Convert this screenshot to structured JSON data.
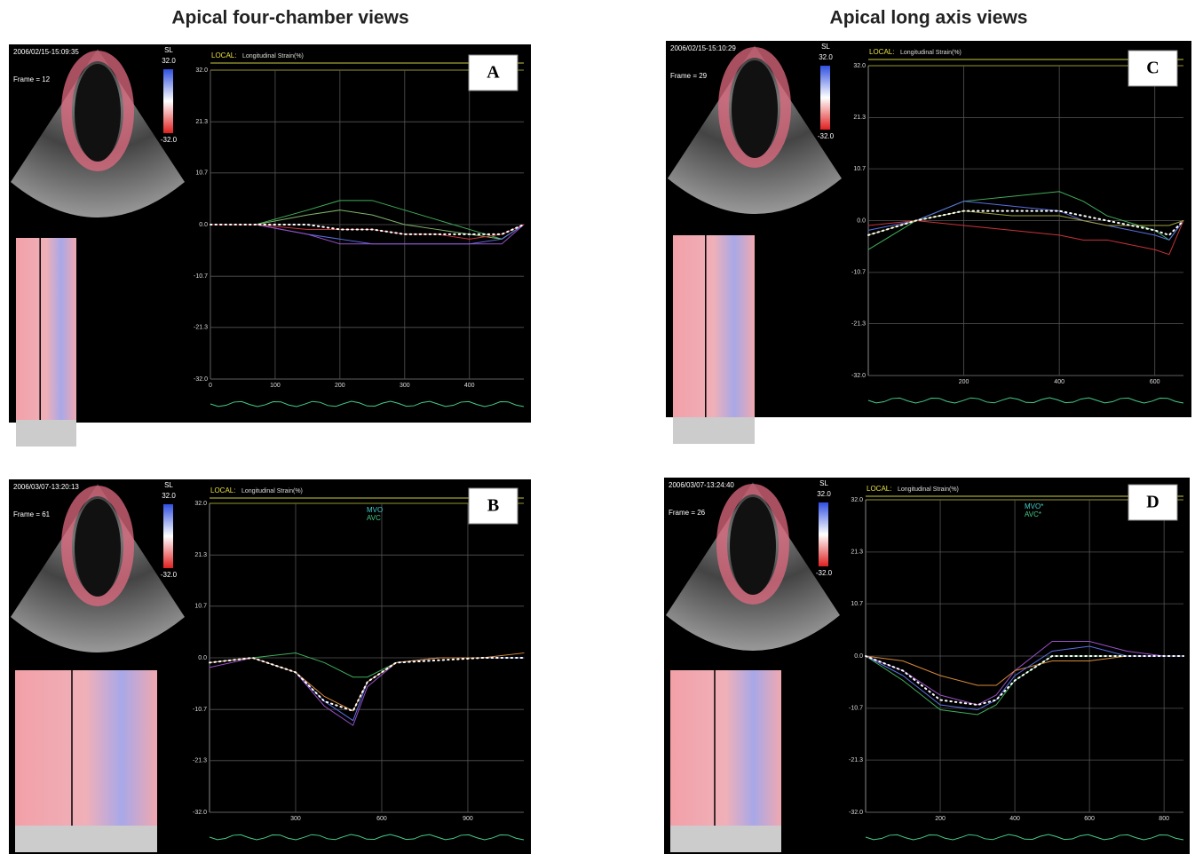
{
  "column_titles": [
    "Apical four-chamber views",
    "Apical long axis views"
  ],
  "chart_data": [
    {
      "type": "line",
      "letter": "A",
      "timestamp": "2006/02/15-15:09:35",
      "frame": "Frame = 12",
      "scale_label": "SL",
      "scale_max": "32.0",
      "scale_min": "-32.0",
      "header": "LOCAL:",
      "y_label": "Longitudinal Strain(%)",
      "grid": true,
      "xlim": [
        0,
        484
      ],
      "xticks": [
        0,
        100,
        200,
        300,
        400
      ],
      "ylim": [
        -32,
        32
      ],
      "yticks": [
        {
          "value": 32,
          "label": "32.0"
        },
        {
          "value": 21.3,
          "label": "21.3"
        },
        {
          "value": 10.7,
          "label": "10.7"
        },
        {
          "value": 0,
          "label": "0.0"
        },
        {
          "value": -10.7,
          "label": "-10.7"
        },
        {
          "value": -21.3,
          "label": "-21.3"
        },
        {
          "value": -32,
          "label": "-32.0"
        }
      ],
      "x": [
        0,
        70,
        150,
        200,
        250,
        300,
        350,
        400,
        450,
        484
      ],
      "series": [
        {
          "color": "#3fae5a",
          "values": [
            0,
            0,
            3,
            5,
            5,
            3,
            1,
            -1,
            -3,
            0
          ]
        },
        {
          "color": "#7fb36a",
          "values": [
            0,
            0,
            2,
            3,
            2,
            0,
            -1,
            -2,
            -3,
            0
          ]
        },
        {
          "color": "#5a6fe0",
          "values": [
            0,
            0,
            -2,
            -3,
            -4,
            -4,
            -4,
            -4,
            -3,
            0
          ]
        },
        {
          "color": "#9a4fc8",
          "values": [
            0,
            0,
            -2,
            -4,
            -4,
            -4,
            -4,
            -4,
            -4,
            0
          ]
        },
        {
          "color": "#c8333a",
          "values": [
            0,
            0,
            -1,
            -1,
            -1,
            -2,
            -2,
            -3,
            -2,
            0
          ]
        },
        {
          "color": "#ffffff",
          "dotted": true,
          "values": [
            0,
            0,
            0,
            -1,
            -1,
            -2,
            -2,
            -2,
            -2,
            0
          ]
        }
      ]
    },
    {
      "type": "line",
      "letter": "B",
      "timestamp": "2006/03/07-13:20:13",
      "frame": "Frame = 61",
      "scale_label": "SL",
      "scale_max": "32.0",
      "scale_min": "-32.0",
      "header": "LOCAL:",
      "y_label": "Longitudinal Strain(%)",
      "events": [
        "MVO",
        "AVC"
      ],
      "grid": true,
      "xlim": [
        0,
        1095
      ],
      "xticks": [
        300,
        600,
        900
      ],
      "ylim": [
        -32,
        32
      ],
      "yticks": [
        {
          "value": 32,
          "label": "32.0"
        },
        {
          "value": 21.3,
          "label": "21.3"
        },
        {
          "value": 10.7,
          "label": "10.7"
        },
        {
          "value": 0,
          "label": "0.0"
        },
        {
          "value": -10.7,
          "label": "-10.7"
        },
        {
          "value": -21.3,
          "label": "-21.3"
        },
        {
          "value": -32,
          "label": "-32.0"
        }
      ],
      "x": [
        0,
        150,
        300,
        400,
        500,
        550,
        650,
        800,
        950,
        1095
      ],
      "series": [
        {
          "color": "#3fae5a",
          "values": [
            -1,
            0,
            1,
            -1,
            -4,
            -4,
            -1,
            0,
            0,
            0
          ]
        },
        {
          "color": "#9a4fc8",
          "values": [
            -2,
            0,
            -3,
            -10,
            -14,
            -6,
            -1,
            0,
            0,
            0
          ]
        },
        {
          "color": "#5a6fe0",
          "values": [
            -1,
            0,
            -3,
            -9,
            -13,
            -5,
            -1,
            0,
            0,
            0
          ]
        },
        {
          "color": "#d88a3a",
          "values": [
            -1,
            0,
            -3,
            -8,
            -11,
            -5,
            -1,
            0,
            0,
            1
          ]
        },
        {
          "color": "#ffffff",
          "dotted": true,
          "values": [
            -1,
            0,
            -3,
            -9,
            -11,
            -5,
            -1,
            -0.5,
            0,
            0
          ]
        }
      ]
    },
    {
      "type": "line",
      "letter": "C",
      "timestamp": "2006/02/15-15:10:29",
      "frame": "Frame = 29",
      "scale_label": "SL",
      "scale_max": "32.0",
      "scale_min": "-32.0",
      "header": "LOCAL:",
      "y_label": "Longitudinal Strain(%)",
      "grid": true,
      "xlim": [
        0,
        660
      ],
      "xticks": [
        200,
        400,
        600
      ],
      "ylim": [
        -32,
        32
      ],
      "yticks": [
        {
          "value": 32,
          "label": "32.0"
        },
        {
          "value": 21.3,
          "label": "21.3"
        },
        {
          "value": 10.7,
          "label": "10.7"
        },
        {
          "value": 0,
          "label": "0.0"
        },
        {
          "value": -10.7,
          "label": "-10.7"
        },
        {
          "value": -21.3,
          "label": "-21.3"
        },
        {
          "value": -32,
          "label": "-32.0"
        }
      ],
      "x": [
        0,
        100,
        200,
        300,
        400,
        450,
        500,
        600,
        630,
        660
      ],
      "series": [
        {
          "color": "#3fae5a",
          "values": [
            -6,
            0,
            4,
            5,
            6,
            4,
            1,
            -2,
            -4,
            0
          ]
        },
        {
          "color": "#5a6fe0",
          "values": [
            -2,
            0,
            4,
            3,
            2,
            0,
            -1,
            -3,
            -4,
            0
          ]
        },
        {
          "color": "#c8333a",
          "values": [
            -1,
            0,
            -1,
            -2,
            -3,
            -4,
            -4,
            -6,
            -7,
            0
          ]
        },
        {
          "color": "#a0a040",
          "values": [
            -3,
            0,
            2,
            1,
            1,
            0,
            -1,
            -1,
            -1,
            0
          ]
        },
        {
          "color": "#ffffff",
          "dotted": true,
          "values": [
            -3,
            0,
            2,
            2,
            2,
            1,
            0,
            -2,
            -3,
            0
          ]
        }
      ]
    },
    {
      "type": "line",
      "letter": "D",
      "timestamp": "2006/03/07-13:24:40",
      "frame": "Frame = 26",
      "scale_label": "SL",
      "scale_max": "32.0",
      "scale_min": "-32.0",
      "header": "LOCAL:",
      "y_label": "Longitudinal Strain(%)",
      "events": [
        "MVO*",
        "AVC*"
      ],
      "grid": true,
      "xlim": [
        0,
        852
      ],
      "xticks": [
        200,
        400,
        600,
        800
      ],
      "ylim": [
        -32,
        32
      ],
      "yticks": [
        {
          "value": 32,
          "label": "32.0"
        },
        {
          "value": 21.3,
          "label": "21.3"
        },
        {
          "value": 10.7,
          "label": "10.7"
        },
        {
          "value": 0,
          "label": "0.0"
        },
        {
          "value": -10.7,
          "label": "-10.7"
        },
        {
          "value": -21.3,
          "label": "-21.3"
        },
        {
          "value": -32,
          "label": "-32.0"
        }
      ],
      "x": [
        0,
        100,
        200,
        300,
        350,
        400,
        500,
        600,
        700,
        800,
        852
      ],
      "series": [
        {
          "color": "#3fae5a",
          "values": [
            0,
            -5,
            -11,
            -12,
            -10,
            -5,
            0,
            0,
            0,
            0,
            0
          ]
        },
        {
          "color": "#9a4fc8",
          "values": [
            0,
            -3,
            -8,
            -10,
            -8,
            -3,
            3,
            3,
            1,
            0,
            0
          ]
        },
        {
          "color": "#d88a3a",
          "values": [
            0,
            -1,
            -4,
            -6,
            -6,
            -3,
            -1,
            -1,
            0,
            0,
            0
          ]
        },
        {
          "color": "#5a6fe0",
          "values": [
            0,
            -4,
            -10,
            -11,
            -9,
            -4,
            1,
            2,
            0,
            0,
            0
          ]
        },
        {
          "color": "#ffffff",
          "dotted": true,
          "values": [
            0,
            -3,
            -9,
            -10,
            -9,
            -5,
            0,
            0,
            0,
            0,
            0
          ]
        }
      ]
    }
  ]
}
